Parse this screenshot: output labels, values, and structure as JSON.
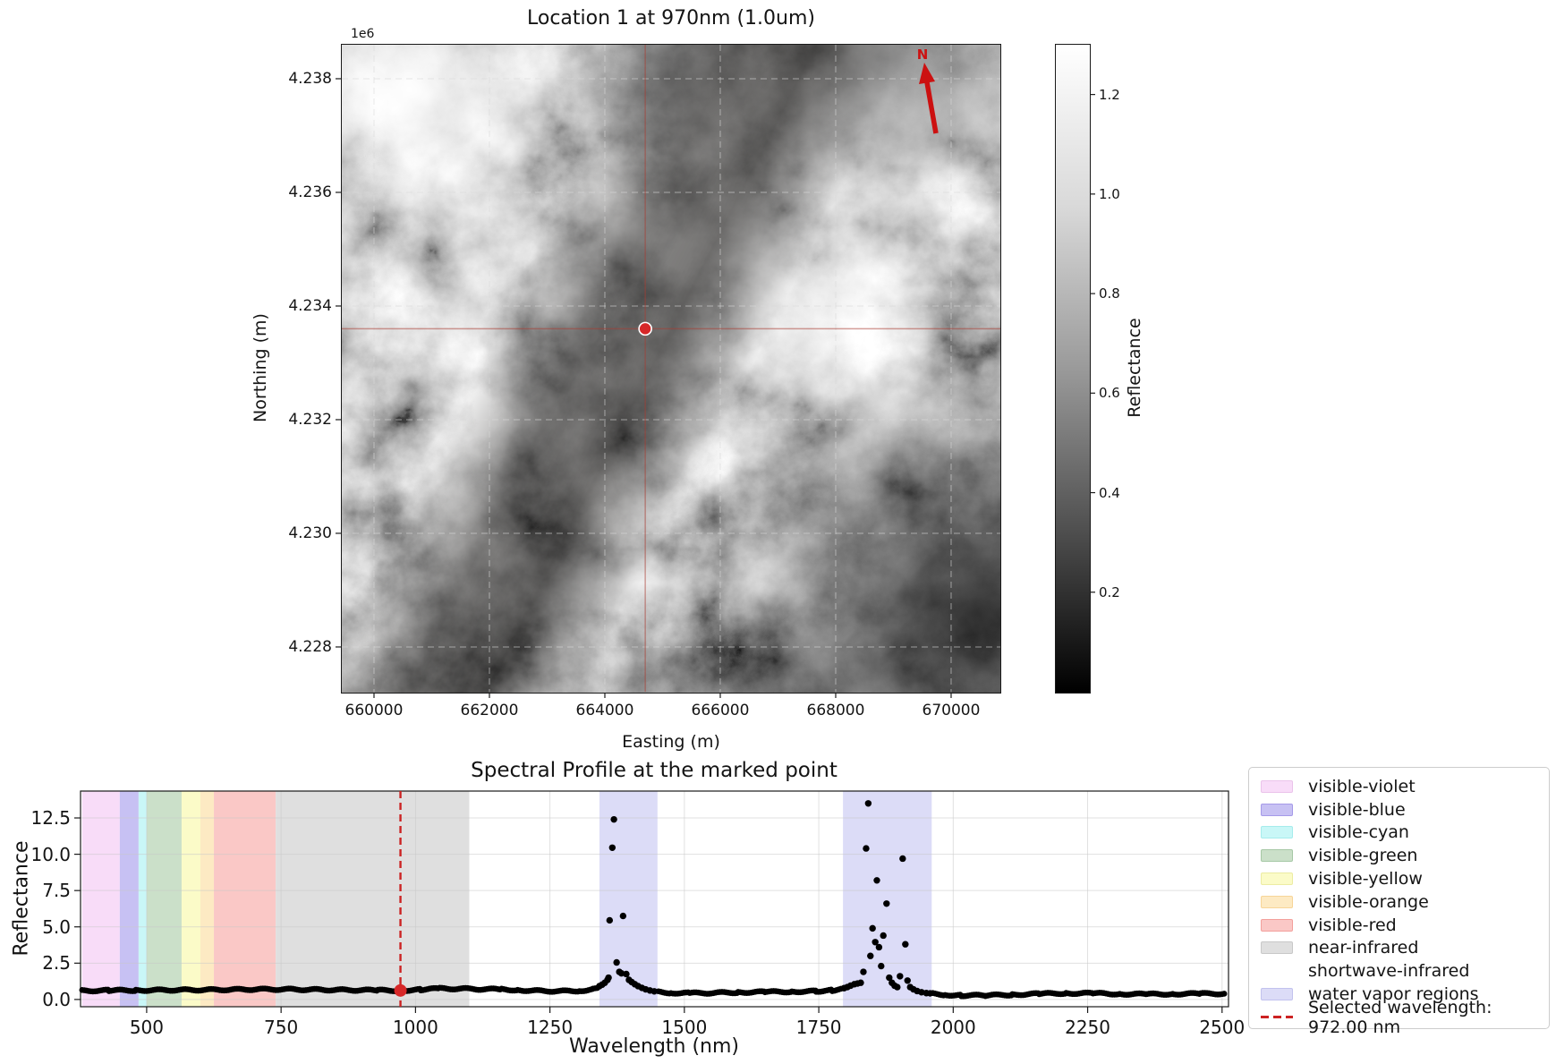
{
  "chart_data": [
    {
      "id": "map-image",
      "type": "heatmap",
      "title": "Location 1 at 970nm (1.0um)",
      "xlabel": "Easting (m)",
      "ylabel": "Northing (m)",
      "y_offset_label": "1e6",
      "xlim": [
        659442,
        670853
      ],
      "ylim": [
        4227212,
        4238598
      ],
      "x_ticks": [
        660000,
        662000,
        664000,
        666000,
        668000,
        670000
      ],
      "x_tick_labels": [
        "660000",
        "662000",
        "664000",
        "666000",
        "668000",
        "670000"
      ],
      "y_ticks": [
        4238000,
        4236000,
        4234000,
        4232000,
        4230000,
        4228000
      ],
      "y_tick_labels": [
        "4.238",
        "4.236",
        "4.234",
        "4.232",
        "4.230",
        "4.228"
      ],
      "grid_style": "dashed",
      "marked_point": {
        "easting": 664700,
        "northing": 4233600
      },
      "marker_color": "#d62728",
      "marker_edge_color": "#ffffff",
      "crosshair_color": "rgba(170,60,50,0.5)",
      "north_arrow_label": "N",
      "north_arrow_color": "#cc1111",
      "colorbar": {
        "label": "Reflectance",
        "cmap": "gray",
        "vmin": 0.0,
        "vmax": 1.3,
        "ticks": [
          0.2,
          0.4,
          0.6,
          0.8,
          1.0,
          1.2
        ],
        "tick_labels": [
          "0.2",
          "0.4",
          "0.6",
          "0.8",
          "1.0",
          "1.2"
        ]
      }
    },
    {
      "id": "spectral-profile",
      "type": "scatter",
      "title": "Spectral Profile at the marked point",
      "xlabel": "Wavelength (nm)",
      "ylabel": "Reflectance",
      "xlim": [
        377,
        2512
      ],
      "ylim": [
        -0.5,
        14.35
      ],
      "x_ticks": [
        500,
        750,
        1000,
        1250,
        1500,
        1750,
        2000,
        2250,
        2500
      ],
      "x_tick_labels": [
        "500",
        "750",
        "1000",
        "1250",
        "1500",
        "1750",
        "2000",
        "2250",
        "2500"
      ],
      "y_ticks": [
        0.0,
        2.5,
        5.0,
        7.5,
        10.0,
        12.5
      ],
      "y_tick_labels": [
        "0.0",
        "2.5",
        "5.0",
        "7.5",
        "10.0",
        "12.5"
      ],
      "grid": true,
      "point_color": "#000000",
      "bands": [
        {
          "name": "visible-violet",
          "range": [
            380,
            450
          ],
          "fill": "#f8dcf8"
        },
        {
          "name": "visible-blue",
          "range": [
            450,
            485
          ],
          "fill": "#c7c1f3"
        },
        {
          "name": "visible-cyan",
          "range": [
            485,
            500
          ],
          "fill": "#c9f7f7"
        },
        {
          "name": "visible-green",
          "range": [
            500,
            565
          ],
          "fill": "#cbe0c9"
        },
        {
          "name": "visible-yellow",
          "range": [
            565,
            600
          ],
          "fill": "#fbfbc8"
        },
        {
          "name": "visible-orange",
          "range": [
            600,
            625
          ],
          "fill": "#fdeac3"
        },
        {
          "name": "visible-red",
          "range": [
            625,
            740
          ],
          "fill": "#fac8c6"
        },
        {
          "name": "near-infrared",
          "range": [
            740,
            1100
          ],
          "fill": "#dfdfdf"
        },
        {
          "name": "shortwave-infrared",
          "range": [
            1100,
            2500
          ],
          "fill": "none"
        },
        {
          "name": "water-vapor-region-1",
          "range": [
            1342,
            1450
          ],
          "fill": "#dcdcf7"
        },
        {
          "name": "water-vapor-region-2",
          "range": [
            1795,
            1960
          ],
          "fill": "#dcdcf7"
        }
      ],
      "baseline_segments": [
        [
          [
            380,
            0.6
          ],
          [
            430,
            0.62
          ],
          [
            480,
            0.63
          ],
          [
            540,
            0.65
          ],
          [
            600,
            0.66
          ],
          [
            660,
            0.68
          ],
          [
            700,
            0.7
          ],
          [
            760,
            0.7
          ],
          [
            820,
            0.67
          ],
          [
            880,
            0.65
          ],
          [
            930,
            0.63
          ],
          [
            972,
            0.62
          ],
          [
            1010,
            0.68
          ],
          [
            1045,
            0.75
          ],
          [
            1085,
            0.74
          ],
          [
            1125,
            0.71
          ],
          [
            1160,
            0.7
          ],
          [
            1190,
            0.65
          ],
          [
            1230,
            0.59
          ],
          [
            1270,
            0.57
          ],
          [
            1305,
            0.6
          ],
          [
            1330,
            0.7
          ],
          [
            1340,
            0.82
          ]
        ],
        [
          [
            1452,
            0.52
          ],
          [
            1475,
            0.46
          ],
          [
            1510,
            0.43
          ],
          [
            1550,
            0.45
          ],
          [
            1600,
            0.49
          ],
          [
            1650,
            0.52
          ],
          [
            1700,
            0.54
          ],
          [
            1745,
            0.57
          ],
          [
            1775,
            0.63
          ],
          [
            1793,
            0.72
          ]
        ],
        [
          [
            1962,
            0.4
          ],
          [
            1985,
            0.33
          ],
          [
            2015,
            0.28
          ],
          [
            2060,
            0.28
          ],
          [
            2110,
            0.33
          ],
          [
            2160,
            0.39
          ],
          [
            2210,
            0.43
          ],
          [
            2260,
            0.42
          ],
          [
            2310,
            0.38
          ],
          [
            2360,
            0.36
          ],
          [
            2410,
            0.38
          ],
          [
            2460,
            0.4
          ],
          [
            2505,
            0.4
          ]
        ]
      ],
      "peak_points": [
        [
          1342,
          0.92
        ],
        [
          1347,
          1.02
        ],
        [
          1352,
          1.15
        ],
        [
          1357,
          1.35
        ],
        [
          1359,
          1.5
        ],
        [
          1361,
          5.45
        ],
        [
          1366,
          10.45
        ],
        [
          1369,
          12.4
        ],
        [
          1374,
          2.55
        ],
        [
          1379,
          1.9
        ],
        [
          1383,
          1.8
        ],
        [
          1386,
          5.75
        ],
        [
          1392,
          1.75
        ],
        [
          1397,
          1.35
        ],
        [
          1402,
          1.2
        ],
        [
          1408,
          1.05
        ],
        [
          1414,
          0.92
        ],
        [
          1421,
          0.8
        ],
        [
          1428,
          0.7
        ],
        [
          1436,
          0.62
        ],
        [
          1444,
          0.56
        ],
        [
          1797,
          0.78
        ],
        [
          1803,
          0.85
        ],
        [
          1809,
          0.95
        ],
        [
          1816,
          1.05
        ],
        [
          1822,
          1.1
        ],
        [
          1828,
          1.15
        ],
        [
          1833,
          1.9
        ],
        [
          1838,
          10.4
        ],
        [
          1842,
          13.5
        ],
        [
          1846,
          3.0
        ],
        [
          1850,
          4.9
        ],
        [
          1855,
          3.95
        ],
        [
          1858,
          8.2
        ],
        [
          1862,
          3.6
        ],
        [
          1866,
          2.3
        ],
        [
          1870,
          4.4
        ],
        [
          1876,
          6.6
        ],
        [
          1881,
          1.5
        ],
        [
          1886,
          1.15
        ],
        [
          1891,
          0.95
        ],
        [
          1896,
          0.85
        ],
        [
          1901,
          1.6
        ],
        [
          1906,
          9.7
        ],
        [
          1911,
          3.8
        ],
        [
          1915,
          1.3
        ],
        [
          1920,
          0.85
        ],
        [
          1926,
          0.7
        ],
        [
          1933,
          0.58
        ],
        [
          1941,
          0.5
        ],
        [
          1950,
          0.44
        ],
        [
          1957,
          0.42
        ]
      ],
      "selected_wavelength": {
        "value_nm": 972.0,
        "marker_reflectance": 0.62,
        "color": "#cc2222",
        "line_style": "dashed"
      }
    }
  ],
  "legend": {
    "items": [
      {
        "label": "visible-violet",
        "kind": "patch",
        "fill": "#f8dcf8",
        "edge": "#eac3ea"
      },
      {
        "label": "visible-blue",
        "kind": "patch",
        "fill": "#c7c1f3",
        "edge": "#a59ae8"
      },
      {
        "label": "visible-cyan",
        "kind": "patch",
        "fill": "#c9f7f7",
        "edge": "#a6ecec"
      },
      {
        "label": "visible-green",
        "kind": "patch",
        "fill": "#cbe0c9",
        "edge": "#a6c8a5"
      },
      {
        "label": "visible-yellow",
        "kind": "patch",
        "fill": "#fbfbc8",
        "edge": "#ececa2"
      },
      {
        "label": "visible-orange",
        "kind": "patch",
        "fill": "#fdeac3",
        "edge": "#f7d598"
      },
      {
        "label": "visible-red",
        "kind": "patch",
        "fill": "#fac8c6",
        "edge": "#f3a09c"
      },
      {
        "label": "near-infrared",
        "kind": "patch",
        "fill": "#dfdfdf",
        "edge": "#c8c8c8"
      },
      {
        "label": "shortwave-infrared",
        "kind": "blank",
        "fill": "transparent",
        "edge": "transparent"
      },
      {
        "label": "water vapor regions",
        "kind": "patch",
        "fill": "#dcdcf7",
        "edge": "#c2c2ee"
      },
      {
        "label": "Selected wavelength: 972.00 nm",
        "kind": "dashed-line",
        "fill": "#cc2222",
        "edge": "#cc2222"
      }
    ]
  }
}
